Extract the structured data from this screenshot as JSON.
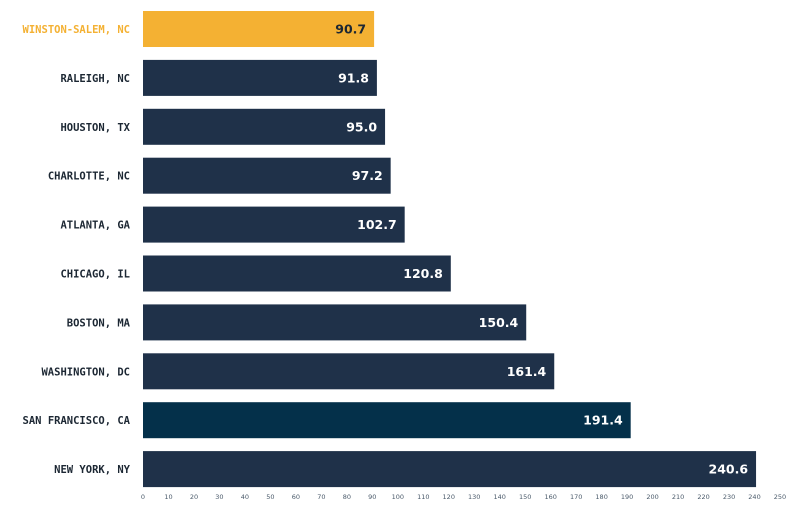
{
  "chart_data": {
    "type": "bar",
    "orientation": "horizontal",
    "categories": [
      "WINSTON-SALEM, NC",
      "RALEIGH, NC",
      "HOUSTON, TX",
      "CHARLOTTE, NC",
      "ATLANTA, GA",
      "CHICAGO, IL",
      "BOSTON, MA",
      "WASHINGTON, DC",
      "SAN FRANCISCO, CA",
      "NEW YORK, NY"
    ],
    "values": [
      90.7,
      91.8,
      95.0,
      97.2,
      102.7,
      120.8,
      150.4,
      161.4,
      191.4,
      240.6
    ],
    "value_labels": [
      "90.7",
      "91.8",
      "95.0",
      "97.2",
      "102.7",
      "120.8",
      "150.4",
      "161.4",
      "191.4",
      "240.6"
    ],
    "bar_colors": [
      "#f4b133",
      "#1f3149",
      "#1f3149",
      "#1f3149",
      "#1f3149",
      "#1f3149",
      "#1f3149",
      "#1f3149",
      "#04304a",
      "#1f3149"
    ],
    "label_colors": [
      "#f4b133",
      "#1c2733",
      "#1c2733",
      "#1c2733",
      "#1c2733",
      "#1c2733",
      "#1c2733",
      "#1c2733",
      "#1c2733",
      "#1c2733"
    ],
    "value_label_colors": [
      "#1c2733",
      "#ffffff",
      "#ffffff",
      "#ffffff",
      "#ffffff",
      "#ffffff",
      "#ffffff",
      "#ffffff",
      "#ffffff",
      "#ffffff"
    ],
    "x_ticks": [
      "0",
      "10",
      "20",
      "30",
      "40",
      "50",
      "60",
      "70",
      "80",
      "90",
      "100",
      "110",
      "120",
      "130",
      "140",
      "150",
      "160",
      "170",
      "180",
      "190",
      "200",
      "210",
      "220",
      "230",
      "240",
      "250"
    ],
    "xlim": [
      0,
      250
    ],
    "title": "",
    "xlabel": "",
    "ylabel": "",
    "grid": false,
    "legend": "none"
  }
}
